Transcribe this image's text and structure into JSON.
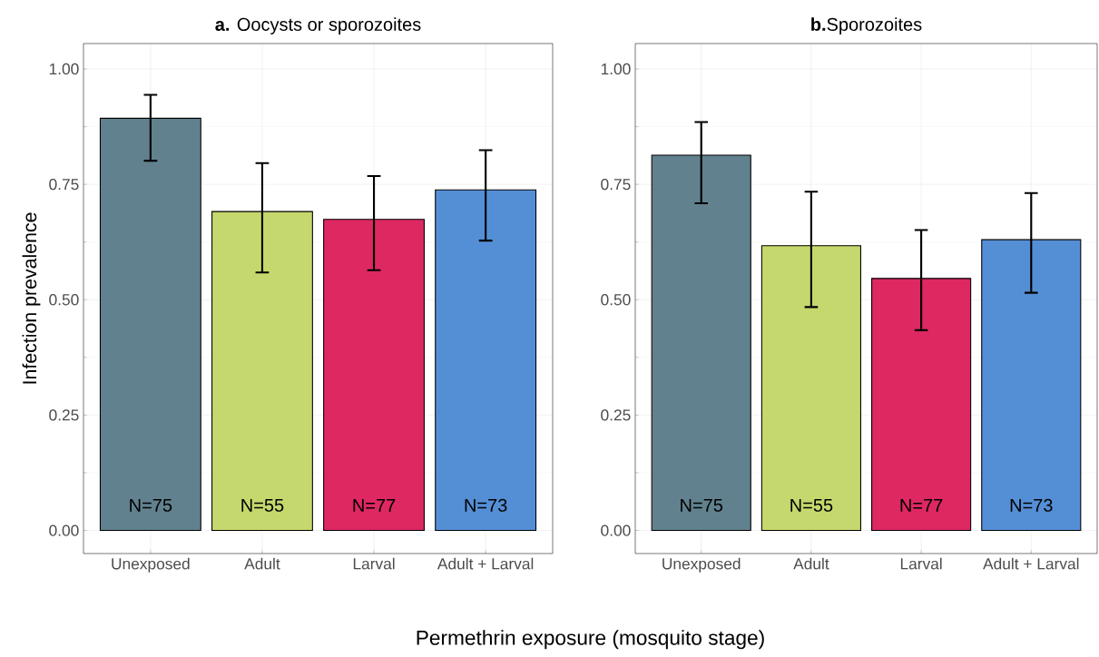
{
  "chart_data": [
    {
      "type": "bar",
      "title": "**a.** Oocysts or sporozoites",
      "ylabel": "Infection prevalence",
      "xlabel": "Permethrin exposure (mosquito stage)",
      "categories": [
        "Unexposed",
        "Adult",
        "Larval",
        "Adult + Larval"
      ],
      "values": [
        0.893,
        0.691,
        0.674,
        0.738
      ],
      "errors": [
        [
          0.801,
          0.944
        ],
        [
          0.559,
          0.796
        ],
        [
          0.564,
          0.768
        ],
        [
          0.628,
          0.824
        ]
      ],
      "colors": [
        "#62818f",
        "#c5d86d",
        "#dd2862",
        "#548fd6"
      ],
      "ylim": [
        -0.05,
        1.055
      ],
      "yticks": [
        {
          "value": 0,
          "label": "0.00"
        },
        {
          "value": 0.25,
          "label": "0.25"
        },
        {
          "value": 0.5,
          "label": "0.50"
        },
        {
          "value": 0.75,
          "label": "0.75"
        },
        {
          "value": 1,
          "label": "1.00"
        }
      ],
      "grid": true,
      "annotations": [
        "N=75",
        "N=55",
        "N=77",
        "N=73"
      ]
    },
    {
      "type": "bar",
      "title": "**b.**Sporozoites",
      "categories": [
        "Unexposed",
        "Adult",
        "Larval",
        "Adult + Larval"
      ],
      "values": [
        0.813,
        0.617,
        0.546,
        0.63
      ],
      "errors": [
        [
          0.709,
          0.885
        ],
        [
          0.484,
          0.734
        ],
        [
          0.434,
          0.651
        ],
        [
          0.515,
          0.731
        ]
      ],
      "colors": [
        "#62818f",
        "#c5d86d",
        "#dd2862",
        "#548fd6"
      ],
      "ylim": [
        -0.05,
        1.055
      ],
      "yticks": [
        {
          "value": 0,
          "label": "0.00"
        },
        {
          "value": 0.25,
          "label": "0.25"
        },
        {
          "value": 0.5,
          "label": "0.50"
        },
        {
          "value": 0.75,
          "label": "0.75"
        },
        {
          "value": 1,
          "label": "1.00"
        }
      ],
      "grid": true,
      "annotations": [
        "N=75",
        "N=55",
        "N=77",
        "N=73"
      ]
    }
  ]
}
